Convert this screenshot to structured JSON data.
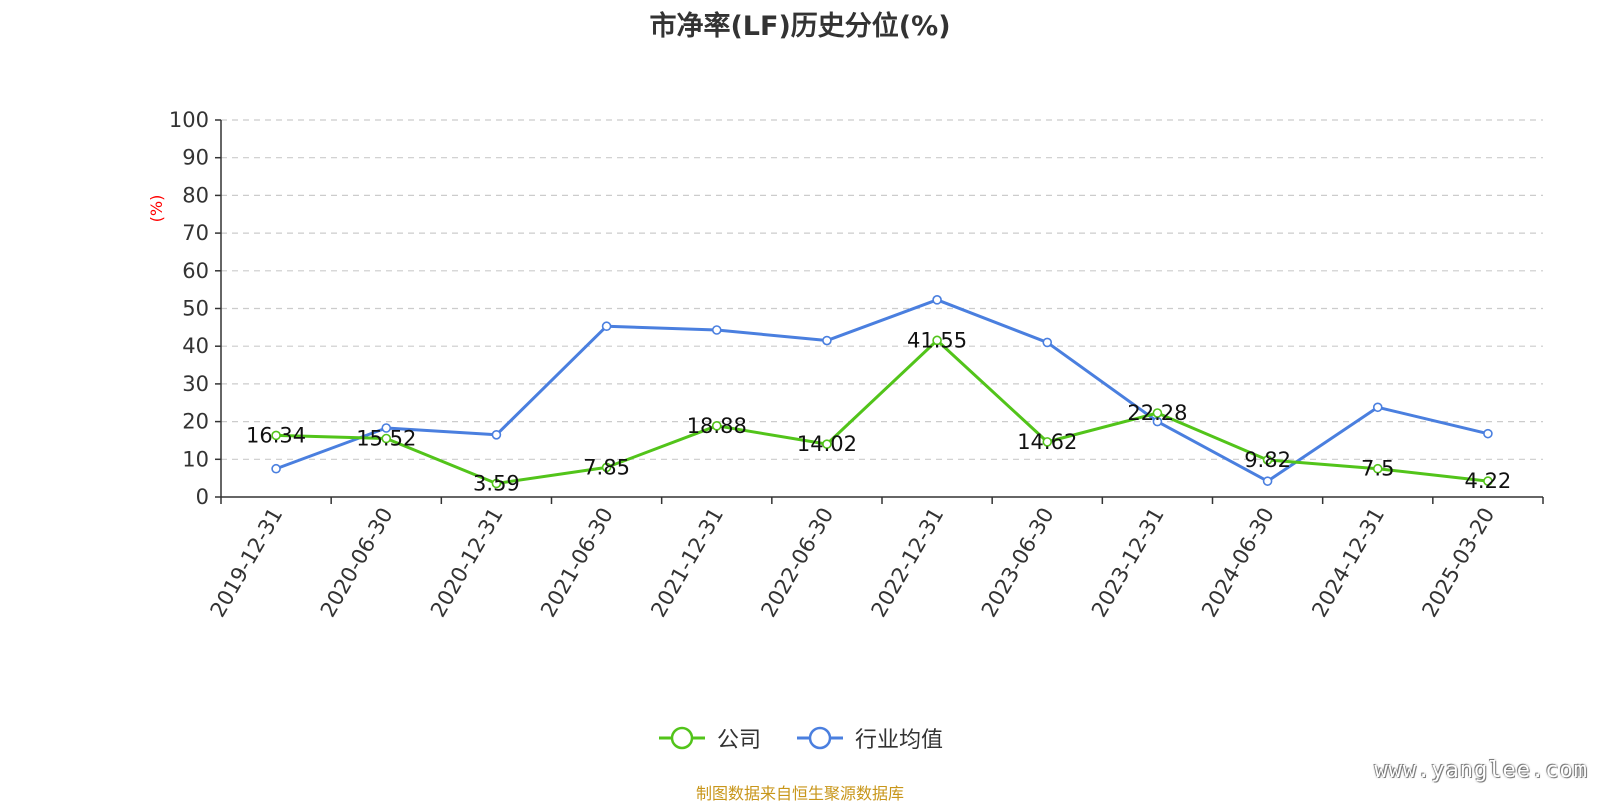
{
  "chart_data": {
    "type": "line",
    "title": "市净率(LF)历史分位(%)",
    "ylabel": "(%)",
    "ylim": [
      0,
      100
    ],
    "yticks": [
      0,
      10,
      20,
      30,
      40,
      50,
      60,
      70,
      80,
      90,
      100
    ],
    "grid": true,
    "legend_position": "bottom-center",
    "categories": [
      "2019-12-31",
      "2020-06-30",
      "2020-12-31",
      "2021-06-30",
      "2021-12-31",
      "2022-06-30",
      "2022-12-31",
      "2023-06-30",
      "2023-12-31",
      "2024-06-30",
      "2024-12-31",
      "2025-03-20"
    ],
    "series": [
      {
        "name": "公司",
        "color": "#52c41a",
        "values": [
          16.34,
          15.52,
          3.59,
          7.85,
          18.88,
          14.02,
          41.55,
          14.62,
          22.28,
          9.82,
          7.5,
          4.22
        ],
        "labels": [
          "16.34",
          "15.52",
          "3.59",
          "7.85",
          "18.88",
          "14.02",
          "41.55",
          "14.62",
          "22.28",
          "9.82",
          "7.5",
          "4.22"
        ]
      },
      {
        "name": "行业均值",
        "color": "#4a7fdf",
        "values": [
          7.5,
          18.3,
          16.5,
          45.3,
          44.3,
          41.5,
          52.3,
          41.0,
          20.0,
          4.2,
          23.8,
          16.8
        ]
      }
    ]
  },
  "footer": {
    "source": "制图数据来自恒生聚源数据库",
    "watermark": "www.yanglee.com"
  }
}
